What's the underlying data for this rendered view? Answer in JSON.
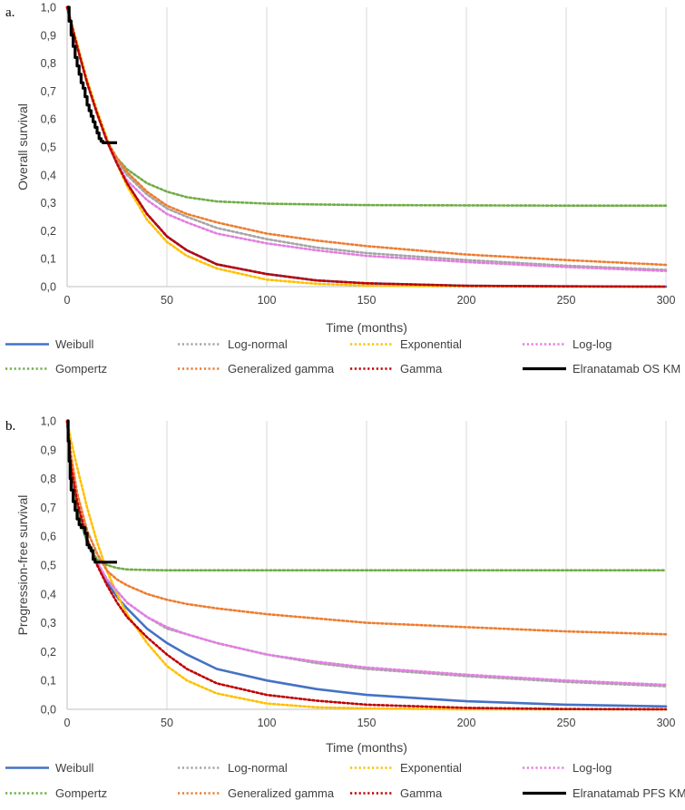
{
  "chart_data": [
    {
      "type": "line",
      "panel_label": "a.",
      "xlabel": "Time (months)",
      "ylabel": "Overall survival",
      "xlim": [
        0,
        300
      ],
      "ylim": [
        0,
        1
      ],
      "x_ticks": [
        "0",
        "50",
        "100",
        "150",
        "200",
        "250",
        "300"
      ],
      "y_ticks": [
        "0,0",
        "0,1",
        "0,2",
        "0,3",
        "0,4",
        "0,5",
        "0,6",
        "0,7",
        "0,8",
        "0,9",
        "1,0"
      ],
      "grid": "vertical",
      "legend_position": "bottom",
      "series": [
        {
          "name": "Weibull",
          "color": "#4472C4",
          "style": "solid",
          "x": [
            0,
            5,
            10,
            15,
            20,
            25,
            30,
            40,
            50,
            60,
            75,
            100,
            125,
            150,
            200,
            250,
            300
          ],
          "y": [
            1.0,
            0.86,
            0.73,
            0.62,
            0.52,
            0.44,
            0.37,
            0.26,
            0.18,
            0.13,
            0.08,
            0.045,
            0.022,
            0.012,
            0.003,
            0.001,
            0.0
          ]
        },
        {
          "name": "Log-normal",
          "color": "#A5A5A5",
          "style": "dotted",
          "x": [
            0,
            5,
            10,
            15,
            20,
            25,
            30,
            40,
            50,
            60,
            75,
            100,
            125,
            150,
            200,
            250,
            300
          ],
          "y": [
            1.0,
            0.86,
            0.73,
            0.62,
            0.52,
            0.45,
            0.4,
            0.33,
            0.28,
            0.25,
            0.21,
            0.17,
            0.14,
            0.12,
            0.095,
            0.075,
            0.06
          ]
        },
        {
          "name": "Exponential",
          "color": "#FFC000",
          "style": "dotted",
          "x": [
            0,
            5,
            10,
            15,
            20,
            25,
            30,
            40,
            50,
            60,
            75,
            100,
            125,
            150,
            200,
            250,
            300
          ],
          "y": [
            1.0,
            0.87,
            0.74,
            0.63,
            0.53,
            0.44,
            0.36,
            0.24,
            0.16,
            0.11,
            0.065,
            0.025,
            0.01,
            0.004,
            0.001,
            0.0,
            0.0
          ]
        },
        {
          "name": "Log-log",
          "color": "#E27FE0",
          "style": "dotted",
          "x": [
            0,
            5,
            10,
            15,
            20,
            25,
            30,
            40,
            50,
            60,
            75,
            100,
            125,
            150,
            200,
            250,
            300
          ],
          "y": [
            1.0,
            0.86,
            0.73,
            0.62,
            0.52,
            0.44,
            0.38,
            0.31,
            0.26,
            0.23,
            0.19,
            0.155,
            0.13,
            0.11,
            0.088,
            0.07,
            0.056
          ]
        },
        {
          "name": "Gompertz",
          "color": "#70AD47",
          "style": "dotted",
          "x": [
            0,
            5,
            10,
            15,
            20,
            25,
            30,
            40,
            50,
            60,
            75,
            100,
            125,
            150,
            200,
            250,
            300
          ],
          "y": [
            1.0,
            0.86,
            0.73,
            0.62,
            0.52,
            0.46,
            0.42,
            0.37,
            0.34,
            0.32,
            0.305,
            0.297,
            0.294,
            0.292,
            0.291,
            0.29,
            0.29
          ]
        },
        {
          "name": "Generalized gamma",
          "color": "#ED7D31",
          "style": "dotted",
          "x": [
            0,
            5,
            10,
            15,
            20,
            25,
            30,
            40,
            50,
            60,
            75,
            100,
            125,
            150,
            200,
            250,
            300
          ],
          "y": [
            1.0,
            0.86,
            0.73,
            0.62,
            0.52,
            0.46,
            0.41,
            0.34,
            0.29,
            0.26,
            0.23,
            0.19,
            0.165,
            0.145,
            0.115,
            0.095,
            0.078
          ]
        },
        {
          "name": "Gamma",
          "color": "#C00000",
          "style": "dotted",
          "x": [
            0,
            5,
            10,
            15,
            20,
            25,
            30,
            40,
            50,
            60,
            75,
            100,
            125,
            150,
            200,
            250,
            300
          ],
          "y": [
            1.0,
            0.86,
            0.73,
            0.62,
            0.52,
            0.44,
            0.37,
            0.26,
            0.18,
            0.13,
            0.08,
            0.045,
            0.022,
            0.012,
            0.003,
            0.001,
            0.0
          ]
        },
        {
          "name": "Elranatamab OS KM",
          "color": "#000000",
          "style": "solid-thick",
          "x": [
            0,
            1,
            2,
            3,
            4,
            5,
            6,
            7,
            8,
            9,
            10,
            11,
            12,
            13,
            14,
            15,
            16,
            17,
            18,
            19,
            25
          ],
          "y": [
            1.0,
            0.95,
            0.9,
            0.86,
            0.82,
            0.79,
            0.76,
            0.73,
            0.71,
            0.68,
            0.65,
            0.63,
            0.61,
            0.59,
            0.57,
            0.55,
            0.53,
            0.52,
            0.515,
            0.515,
            0.515
          ]
        }
      ]
    },
    {
      "type": "line",
      "panel_label": "b.",
      "xlabel": "Time (months)",
      "ylabel": "Progression-free survival",
      "xlim": [
        0,
        300
      ],
      "ylim": [
        0,
        1
      ],
      "x_ticks": [
        "0",
        "50",
        "100",
        "150",
        "200",
        "250",
        "300"
      ],
      "y_ticks": [
        "0,0",
        "0,1",
        "0,2",
        "0,3",
        "0,4",
        "0,5",
        "0,6",
        "0,7",
        "0,8",
        "0,9",
        "1,0"
      ],
      "grid": "vertical",
      "legend_position": "bottom",
      "series": [
        {
          "name": "Weibull",
          "color": "#4472C4",
          "style": "solid",
          "x": [
            0,
            2,
            5,
            10,
            15,
            20,
            25,
            30,
            40,
            50,
            60,
            75,
            100,
            125,
            150,
            200,
            250,
            300
          ],
          "y": [
            1.0,
            0.82,
            0.69,
            0.58,
            0.51,
            0.44,
            0.39,
            0.35,
            0.28,
            0.23,
            0.19,
            0.14,
            0.1,
            0.07,
            0.05,
            0.028,
            0.016,
            0.01
          ]
        },
        {
          "name": "Log-normal",
          "color": "#A5A5A5",
          "style": "dotted",
          "x": [
            0,
            2,
            5,
            10,
            15,
            20,
            25,
            30,
            40,
            50,
            60,
            75,
            100,
            125,
            150,
            200,
            250,
            300
          ],
          "y": [
            1.0,
            0.83,
            0.7,
            0.59,
            0.51,
            0.45,
            0.41,
            0.37,
            0.32,
            0.28,
            0.26,
            0.23,
            0.19,
            0.16,
            0.14,
            0.115,
            0.095,
            0.08
          ]
        },
        {
          "name": "Exponential",
          "color": "#FFC000",
          "style": "dotted",
          "x": [
            0,
            2,
            5,
            10,
            15,
            20,
            25,
            30,
            40,
            50,
            60,
            75,
            100,
            125,
            150,
            200,
            250,
            300
          ],
          "y": [
            1.0,
            0.93,
            0.84,
            0.7,
            0.58,
            0.48,
            0.4,
            0.33,
            0.23,
            0.15,
            0.1,
            0.055,
            0.02,
            0.007,
            0.003,
            0.0,
            0.0,
            0.0
          ]
        },
        {
          "name": "Log-log",
          "color": "#E27FE0",
          "style": "dotted",
          "x": [
            0,
            2,
            5,
            10,
            15,
            20,
            25,
            30,
            40,
            50,
            60,
            75,
            100,
            125,
            150,
            200,
            250,
            300
          ],
          "y": [
            1.0,
            0.83,
            0.7,
            0.59,
            0.51,
            0.45,
            0.41,
            0.37,
            0.32,
            0.285,
            0.26,
            0.23,
            0.19,
            0.165,
            0.145,
            0.12,
            0.1,
            0.085
          ]
        },
        {
          "name": "Gompertz",
          "color": "#70AD47",
          "style": "dotted",
          "x": [
            0,
            2,
            5,
            10,
            15,
            20,
            25,
            30,
            40,
            50,
            60,
            75,
            100,
            125,
            150,
            200,
            250,
            300
          ],
          "y": [
            1.0,
            0.84,
            0.7,
            0.58,
            0.52,
            0.5,
            0.49,
            0.485,
            0.483,
            0.482,
            0.482,
            0.482,
            0.482,
            0.482,
            0.482,
            0.482,
            0.482,
            0.482
          ]
        },
        {
          "name": "Generalized gamma",
          "color": "#ED7D31",
          "style": "dotted",
          "x": [
            0,
            2,
            5,
            10,
            15,
            20,
            25,
            30,
            40,
            50,
            60,
            75,
            100,
            125,
            150,
            200,
            250,
            300
          ],
          "y": [
            1.0,
            0.88,
            0.75,
            0.62,
            0.54,
            0.48,
            0.45,
            0.43,
            0.4,
            0.38,
            0.365,
            0.35,
            0.33,
            0.315,
            0.3,
            0.285,
            0.27,
            0.26
          ]
        },
        {
          "name": "Gamma",
          "color": "#C00000",
          "style": "dotted",
          "x": [
            0,
            2,
            5,
            10,
            15,
            20,
            25,
            30,
            40,
            50,
            60,
            75,
            100,
            125,
            150,
            200,
            250,
            300
          ],
          "y": [
            1.0,
            0.84,
            0.72,
            0.59,
            0.5,
            0.43,
            0.37,
            0.32,
            0.25,
            0.19,
            0.14,
            0.09,
            0.05,
            0.03,
            0.016,
            0.005,
            0.001,
            0.0
          ]
        },
        {
          "name": "Elranatamab PFS KM",
          "color": "#000000",
          "style": "solid-thick",
          "x": [
            0,
            0.5,
            1,
            1.5,
            2,
            3,
            4,
            5,
            6,
            7,
            8,
            9,
            10,
            11,
            12,
            13,
            14,
            15,
            25
          ],
          "y": [
            1.0,
            0.93,
            0.86,
            0.8,
            0.76,
            0.72,
            0.69,
            0.66,
            0.64,
            0.63,
            0.63,
            0.61,
            0.57,
            0.56,
            0.55,
            0.52,
            0.51,
            0.51,
            0.51
          ]
        }
      ]
    }
  ]
}
